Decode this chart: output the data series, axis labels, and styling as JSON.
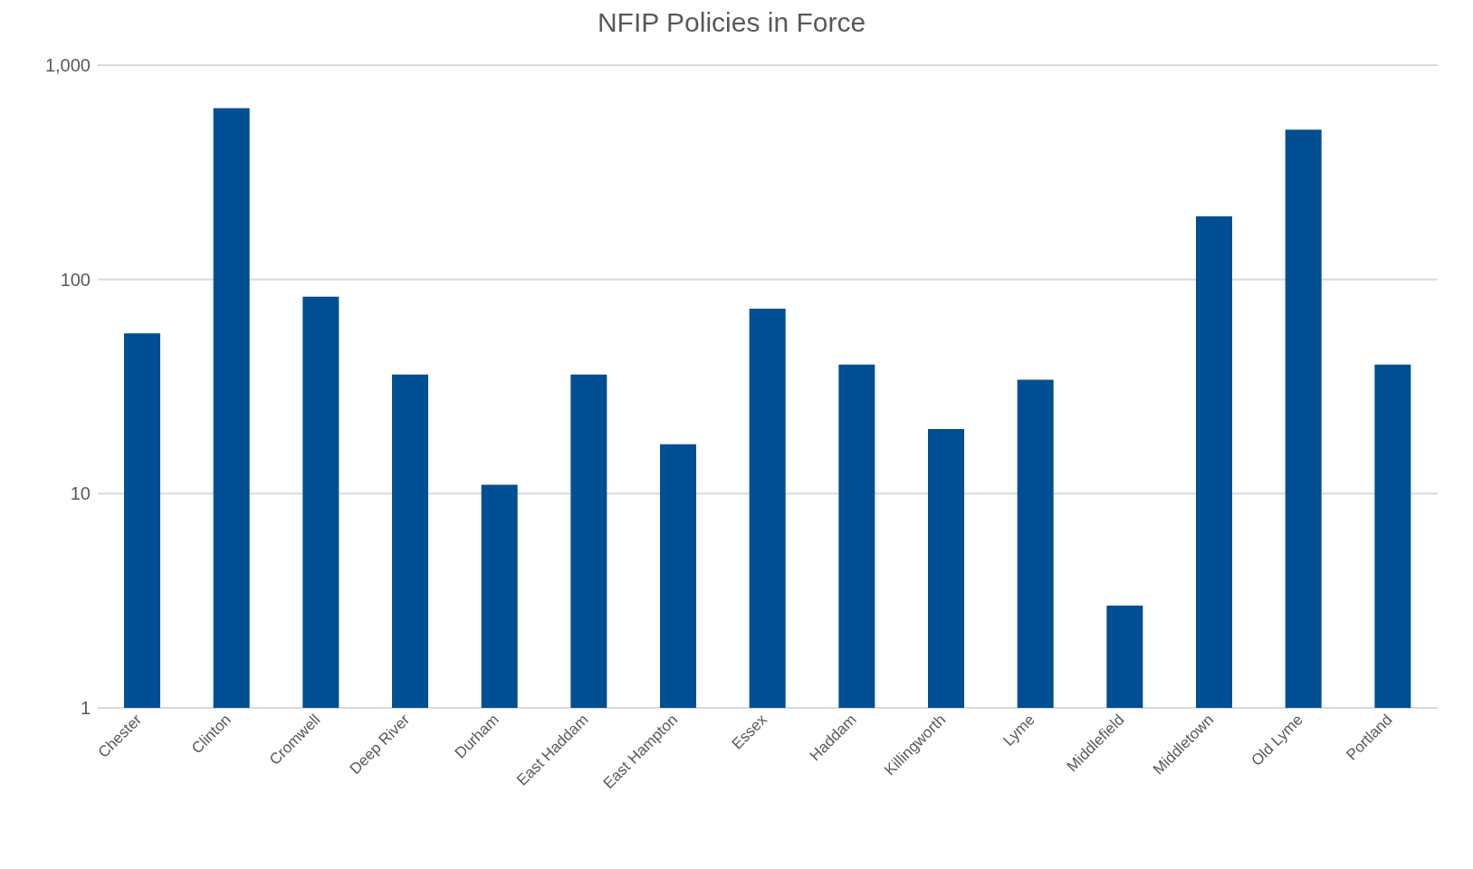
{
  "chart_data": {
    "type": "bar",
    "title": "NFIP Policies in Force",
    "categories": [
      "Chester",
      "Clinton",
      "Cromwell",
      "Deep River",
      "Durham",
      "East Haddam",
      "East Hampton",
      "Essex",
      "Haddam",
      "Killingworth",
      "Lyme",
      "Middlefield",
      "Middletown",
      "Old Lyme",
      "Portland"
    ],
    "values": [
      56,
      630,
      83,
      36,
      11,
      36,
      17,
      73,
      40,
      20,
      34,
      3,
      197,
      500,
      40
    ],
    "color": "#004f93",
    "log": "y",
    "ylim": [
      1,
      1000
    ],
    "yticks": [
      1,
      10,
      100,
      {
        "value": 1000,
        "label": "1,000"
      }
    ],
    "grid": "y"
  }
}
